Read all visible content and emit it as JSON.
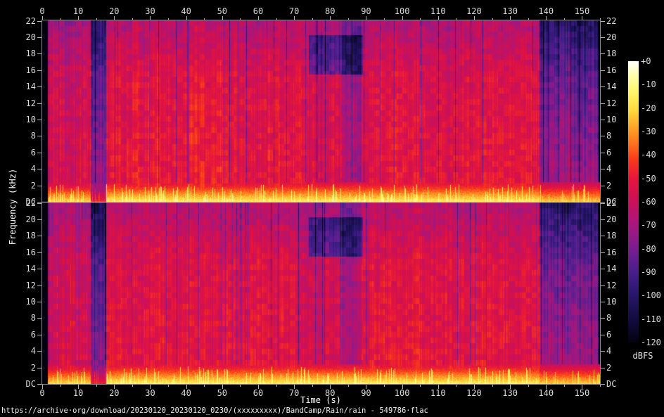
{
  "style": {
    "background": "#000000",
    "text_color": "#e6e6e6",
    "tick_color": "#b4b4b4",
    "plot_border_color": "#8c8c8c",
    "channel_separator_color": "#c8c8c8"
  },
  "chart_data": {
    "type": "heatmap",
    "subtype": "stereo-audio-spectrogram",
    "title": "https://archive·org/download/20230120_20230120_0230/(xxxxxxxxx)/BandCamp/Rain/rain - 549786·flac",
    "xlabel": "Time (s)",
    "ylabel": "Frequency (kHz)",
    "duration_s": 155,
    "x_range_s": [
      0,
      155
    ],
    "x_ticks_major": [
      0,
      10,
      20,
      30,
      40,
      50,
      60,
      70,
      80,
      90,
      100,
      110,
      120,
      130,
      140,
      150
    ],
    "x_ticks_minor": [
      5,
      15,
      25,
      35,
      45,
      55,
      65,
      75,
      85,
      95,
      105,
      115,
      125,
      135,
      145,
      155
    ],
    "y_range_khz": [
      0,
      22.05
    ],
    "y_tick_labels": [
      "22",
      "20",
      "18",
      "16",
      "14",
      "12",
      "10",
      "8",
      "6",
      "4",
      "2",
      "DC"
    ],
    "channels": [
      "channel-1",
      "channel-2"
    ],
    "colorbar": {
      "label": "dBFS",
      "range_db": [
        0,
        -120
      ],
      "tick_labels": [
        "+0",
        "-10",
        "-20",
        "-30",
        "-40",
        "-50",
        "-60",
        "-70",
        "-80",
        "-90",
        "-100",
        "-110",
        "-120"
      ]
    },
    "palette_db_rgb": [
      [
        0,
        255,
        255,
        255
      ],
      [
        -6,
        255,
        255,
        170
      ],
      [
        -14,
        255,
        243,
        100
      ],
      [
        -21,
        255,
        217,
        60
      ],
      [
        -28,
        255,
        166,
        40
      ],
      [
        -35,
        255,
        115,
        30
      ],
      [
        -42,
        248,
        58,
        25
      ],
      [
        -50,
        230,
        22,
        60
      ],
      [
        -58,
        208,
        16,
        82
      ],
      [
        -66,
        182,
        20,
        112
      ],
      [
        -74,
        150,
        26,
        134
      ],
      [
        -82,
        110,
        30,
        146
      ],
      [
        -90,
        72,
        30,
        140
      ],
      [
        -98,
        44,
        24,
        114
      ],
      [
        -106,
        26,
        16,
        80
      ],
      [
        -114,
        12,
        8,
        46
      ],
      [
        -120,
        3,
        2,
        14
      ]
    ],
    "segments": [
      {
        "t": [
          0,
          1.4
        ],
        "level_db": -120,
        "dc_db": null,
        "label": "leading silence"
      },
      {
        "t": [
          1.4,
          13.4
        ],
        "level_db": -60,
        "dc_db": -20,
        "label": "intro, finely striped"
      },
      {
        "t": [
          13.4,
          17.6
        ],
        "level_db": -93,
        "dc_db": -46,
        "label": "quiet passage"
      },
      {
        "t": [
          17.6,
          74.0
        ],
        "level_db": -54,
        "dc_db": -15,
        "label": "loud section"
      },
      {
        "t": [
          74.0,
          89.0
        ],
        "level_db": -57,
        "dc_db": -15,
        "label": "loud with high-frequency notch",
        "hf_notch_khz": [
          15.5,
          20.3
        ],
        "hf_notch_db": -26,
        "dips": [
          {
            "t": [
              83.2,
              88.6
            ],
            "db": -14
          }
        ]
      },
      {
        "t": [
          89.0,
          138.0
        ],
        "level_db": -54,
        "dc_db": -15,
        "label": "loud section"
      },
      {
        "t": [
          138.0,
          155.0
        ],
        "level_db": -90,
        "dc_db": -22,
        "label": "outro, quiet striped"
      }
    ],
    "low_band": {
      "cutoff_khz": 2.4,
      "description": "bright yellow/orange energy band near DC"
    },
    "render_seeds": [
      7,
      13
    ]
  }
}
